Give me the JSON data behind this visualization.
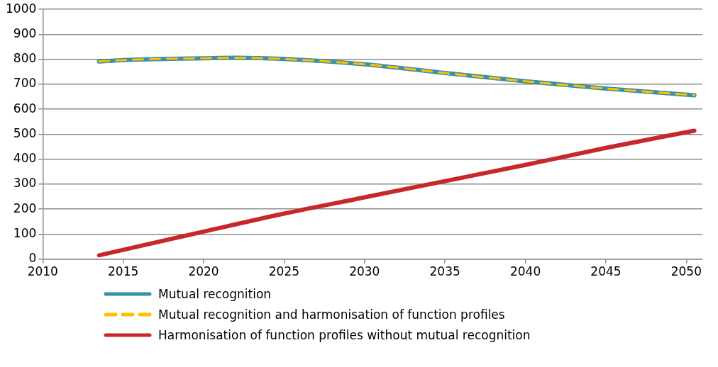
{
  "chart_data": {
    "type": "line",
    "xlim": [
      2010,
      2051
    ],
    "xticks": [
      2010,
      2015,
      2020,
      2025,
      2030,
      2035,
      2040,
      2045,
      2050
    ],
    "ylim": [
      0,
      1000
    ],
    "yticks": [
      0,
      100,
      200,
      300,
      400,
      500,
      600,
      700,
      800,
      900,
      1000
    ],
    "grid": "y",
    "legend": "bottom",
    "marker": "none",
    "series": [
      {
        "name": "Mutual recognition",
        "color": "#3a90a6",
        "line_style": "solid",
        "x": [
          2013.5,
          2015,
          2020,
          2022,
          2025,
          2030,
          2035,
          2040,
          2045,
          2050.5
        ],
        "values": [
          791,
          797,
          804,
          806,
          801,
          780,
          745,
          712,
          683,
          656
        ]
      },
      {
        "name": "Mutual recognition and harmonisation of function profiles",
        "color": "#ffc000",
        "line_style": "dashed",
        "x": [
          2013.5,
          2015,
          2020,
          2022,
          2025,
          2030,
          2035,
          2040,
          2045,
          2050.5
        ],
        "values": [
          791,
          797,
          804,
          806,
          801,
          780,
          745,
          712,
          683,
          656
        ]
      },
      {
        "name": "Harmonisation of function profiles without mutual recognition",
        "color": "#c8282d",
        "line_style": "solid",
        "x": [
          2013.5,
          2020,
          2025,
          2030,
          2035,
          2040,
          2045,
          2050.5
        ],
        "values": [
          15,
          110,
          182,
          247,
          312,
          377,
          445,
          514
        ]
      }
    ]
  }
}
